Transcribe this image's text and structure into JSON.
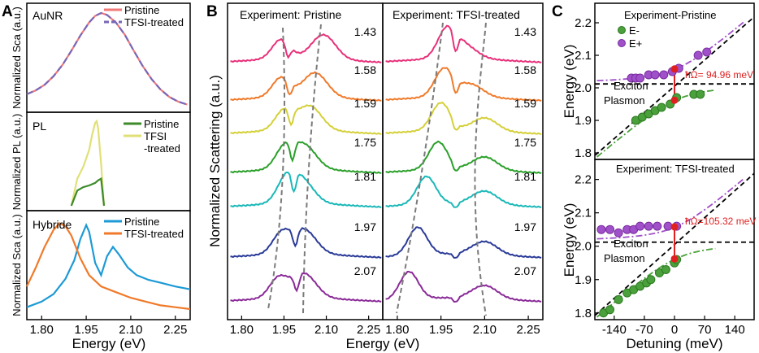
{
  "panel_letters": {
    "a": "A",
    "b": "B",
    "c": "C"
  },
  "colors": {
    "pristine_aunr": "#f07878",
    "tfsi_aunr": "#7868b8",
    "pl_pristine": "#3d8a2a",
    "pl_tfsi": "#e0e078",
    "hyb_pristine": "#1d9ad6",
    "hyb_tfsi": "#f07a2a",
    "e_minus": "#4aa03a",
    "e_plus": "#a050c8",
    "rabi": "#e02020",
    "guide": "#7a7a7a"
  },
  "chart_data": [
    {
      "id": "A-top",
      "type": "line",
      "title": "AuNR",
      "ylabel": "Normalized Sca (a.u.)",
      "legend": [
        "Pristine",
        "TFSI-treated"
      ],
      "legend_position": "top-right",
      "xlim": [
        1.75,
        2.3
      ],
      "series": [
        {
          "name": "Pristine",
          "x": [
            1.75,
            1.78,
            1.81,
            1.84,
            1.87,
            1.9,
            1.93,
            1.96,
            1.98,
            2.0,
            2.02,
            2.05,
            2.08,
            2.11,
            2.14,
            2.17,
            2.2,
            2.23,
            2.26,
            2.29
          ],
          "y": [
            0.14,
            0.18,
            0.24,
            0.33,
            0.45,
            0.6,
            0.76,
            0.9,
            0.97,
            1.0,
            0.98,
            0.9,
            0.77,
            0.6,
            0.44,
            0.3,
            0.19,
            0.11,
            0.06,
            0.03
          ]
        },
        {
          "name": "TFSI-treated",
          "x": [
            1.75,
            1.78,
            1.81,
            1.84,
            1.87,
            1.9,
            1.93,
            1.96,
            1.98,
            2.0,
            2.02,
            2.05,
            2.08,
            2.11,
            2.14,
            2.17,
            2.2,
            2.23,
            2.26,
            2.29
          ],
          "y": [
            0.14,
            0.18,
            0.24,
            0.33,
            0.45,
            0.6,
            0.76,
            0.9,
            0.97,
            1.0,
            0.98,
            0.9,
            0.77,
            0.6,
            0.44,
            0.3,
            0.19,
            0.11,
            0.06,
            0.03
          ]
        }
      ]
    },
    {
      "id": "A-middle",
      "type": "line",
      "title": "PL",
      "ylabel": "Normalized PL (a.u.)",
      "legend": [
        "Pristine",
        "TFSI",
        "-treated"
      ],
      "legend_position": "top-right",
      "xlim": [
        1.75,
        2.3
      ],
      "series": [
        {
          "name": "Pristine",
          "x": [
            1.9,
            1.92,
            1.94,
            1.96,
            1.98,
            1.99,
            2.0,
            2.01
          ],
          "y": [
            0.0,
            0.18,
            0.22,
            0.24,
            0.27,
            0.3,
            0.32,
            0.0
          ]
        },
        {
          "name": "TFSI-treated",
          "x": [
            1.9,
            1.92,
            1.94,
            1.96,
            1.97,
            1.98,
            1.985,
            1.99,
            2.0,
            2.01
          ],
          "y": [
            0.0,
            0.32,
            0.46,
            0.66,
            0.84,
            0.98,
            1.0,
            0.92,
            0.5,
            0.0
          ]
        }
      ]
    },
    {
      "id": "A-bottom",
      "type": "line",
      "title": "Hybride",
      "ylabel": "Normalized Sca (a.u.)",
      "xlabel": "Energy (eV)",
      "legend": [
        "Pristine",
        "TFSI-treated"
      ],
      "legend_position": "top-right",
      "xlim": [
        1.75,
        2.3
      ],
      "xticks": [
        "1.80",
        "1.95",
        "2.10",
        "2.25"
      ],
      "series": [
        {
          "name": "Pristine",
          "x": [
            1.75,
            1.8,
            1.84,
            1.88,
            1.91,
            1.93,
            1.95,
            1.96,
            1.98,
            2.0,
            2.02,
            2.04,
            2.06,
            2.09,
            2.12,
            2.16,
            2.2,
            2.25,
            2.3
          ],
          "y": [
            0.08,
            0.14,
            0.22,
            0.38,
            0.58,
            0.8,
            0.95,
            0.88,
            0.55,
            0.42,
            0.62,
            0.72,
            0.64,
            0.5,
            0.42,
            0.37,
            0.34,
            0.3,
            0.27
          ]
        },
        {
          "name": "TFSI-treated",
          "x": [
            1.75,
            1.78,
            1.81,
            1.84,
            1.86,
            1.88,
            1.9,
            1.93,
            1.96,
            2.0,
            2.05,
            2.1,
            2.15,
            2.2,
            2.25,
            2.3
          ],
          "y": [
            0.3,
            0.5,
            0.72,
            0.9,
            0.97,
            0.94,
            0.84,
            0.6,
            0.42,
            0.3,
            0.24,
            0.18,
            0.14,
            0.1,
            0.08,
            0.06
          ]
        }
      ]
    },
    {
      "id": "B-left",
      "type": "line",
      "title": "Experiment: Pristine",
      "ylabel": "Normalized Scattering (a.u.)",
      "xlim": [
        1.75,
        2.3
      ],
      "xticks": [
        "1.80",
        "1.95",
        "2.10",
        "2.25"
      ],
      "series": [
        {
          "name": "1.43",
          "color": "#e8307a",
          "dip": 1.965,
          "peak1": 1.94,
          "peak2": 2.09
        },
        {
          "name": "1.58",
          "color": "#f07a2a",
          "dip": 1.97,
          "peak1": 1.94,
          "peak2": 2.06
        },
        {
          "name": "1.59",
          "color": "#d4d038",
          "dip": 1.975,
          "peak1": 1.95,
          "peak2": 2.04
        },
        {
          "name": "1.75",
          "color": "#2aa02a",
          "dip": 1.98,
          "peak1": 1.95,
          "peak2": 2.02
        },
        {
          "name": "1.81",
          "color": "#1ab8b8",
          "dip": 1.985,
          "peak1": 1.955,
          "peak2": 2.01
        },
        {
          "name": "1.97",
          "color": "#2a3a98",
          "dip": 1.99,
          "peak1": 1.94,
          "peak2": 2.02
        },
        {
          "name": "2.07",
          "color": "#8a2a98",
          "dip": 1.995,
          "peak1": 1.93,
          "peak2": 2.02
        }
      ]
    },
    {
      "id": "B-right",
      "type": "line",
      "title": "Experiment: TFSI-treated",
      "xlabel": "Energy (eV)",
      "xlim": [
        1.75,
        2.3
      ],
      "xticks": [
        "1.80",
        "1.95",
        "2.10",
        "2.25"
      ],
      "series": [
        {
          "name": "1.43",
          "color": "#e8307a",
          "dip": 2.0,
          "peak1": 1.97,
          "peak2": 2.03
        },
        {
          "name": "1.58",
          "color": "#f07a2a",
          "dip": 2.0,
          "peak1": 1.96,
          "peak2": 2.05
        },
        {
          "name": "1.59",
          "color": "#d4d038",
          "dip": 2.0,
          "peak1": 1.95,
          "peak2": 2.1
        },
        {
          "name": "1.75",
          "color": "#2aa02a",
          "dip": 2.0,
          "peak1": 1.94,
          "peak2": 2.1
        },
        {
          "name": "1.81",
          "color": "#1ab8b8",
          "dip": 2.0,
          "peak1": 1.9,
          "peak2": 2.1
        },
        {
          "name": "1.97",
          "color": "#2a3a98",
          "dip": 2.0,
          "peak1": 1.87,
          "peak2": 2.1
        },
        {
          "name": "2.07",
          "color": "#8a2a98",
          "dip": 2.0,
          "peak1": 1.84,
          "peak2": 2.1
        }
      ]
    },
    {
      "id": "C-top",
      "type": "scatter",
      "title": "Experiment-Pristine",
      "ylabel": "Energy (eV)",
      "ylim": [
        1.78,
        2.26
      ],
      "yticks": [
        "1.8",
        "1.9",
        "2.0",
        "2.1",
        "2.2"
      ],
      "xlim": [
        -185,
        185
      ],
      "legend": [
        "E-",
        "E+"
      ],
      "legend_position": "top-left",
      "annotations": [
        "ħΩ= 94.96 meV",
        "Exciton",
        "Plasmon"
      ],
      "series": [
        {
          "name": "E-",
          "x": [
            -90,
            -75,
            -60,
            -45,
            -30,
            -10,
            5,
            45,
            60
          ],
          "y": [
            1.9,
            1.91,
            1.92,
            1.93,
            1.94,
            1.95,
            1.97,
            1.98,
            1.98
          ]
        },
        {
          "name": "E+",
          "x": [
            -100,
            -90,
            -80,
            -60,
            -45,
            -25,
            -5,
            10,
            55,
            75
          ],
          "y": [
            2.03,
            2.03,
            2.03,
            2.04,
            2.04,
            2.04,
            2.05,
            2.06,
            2.1,
            2.11
          ]
        }
      ]
    },
    {
      "id": "C-bottom",
      "type": "scatter",
      "title": "Experiment: TFSI-treated",
      "ylabel": "Energy (eV)",
      "xlabel": "Detuning (meV)",
      "ylim": [
        1.78,
        2.26
      ],
      "yticks": [
        "1.8",
        "1.9",
        "2.0",
        "2.1",
        "2.2"
      ],
      "xlim": [
        -185,
        185
      ],
      "xticks": [
        "-140",
        "-70",
        "0",
        "70",
        "140"
      ],
      "annotations": [
        "ħΩ=105.32 meV",
        "Exciton",
        "Plasmon"
      ],
      "series": [
        {
          "name": "E-",
          "x": [
            -165,
            -150,
            -130,
            -110,
            -95,
            -80,
            -65,
            -55,
            -35,
            -20,
            0,
            5
          ],
          "y": [
            1.8,
            1.81,
            1.84,
            1.86,
            1.87,
            1.88,
            1.89,
            1.9,
            1.92,
            1.93,
            1.95,
            1.96
          ]
        },
        {
          "name": "E+",
          "x": [
            -170,
            -150,
            -130,
            -110,
            -95,
            -80,
            -60,
            -40,
            -15,
            5
          ],
          "y": [
            2.05,
            2.05,
            2.04,
            2.05,
            2.05,
            2.06,
            2.06,
            2.06,
            2.06,
            2.06
          ]
        }
      ]
    }
  ],
  "labels": {
    "aunr": "AuNR",
    "pl": "PL",
    "hybride": "Hybride",
    "pristine": "Pristine",
    "tfsi_treated": "TFSI-treated",
    "tfsi": "TFSI",
    "treated": "-treated",
    "a_ylabel_top": "Normalized Sca (a.u.)",
    "a_ylabel_mid": "Normalized PL (a.u.)",
    "a_ylabel_bot": "Normalized Sca (a.u.)",
    "energy_ev": "Energy (eV)",
    "b_left_title": "Experiment: Pristine",
    "b_right_title": "Experiment: TFSI-treated",
    "b_ylabel": "Normalized Scattering (a.u.)",
    "c_top_title": "Experiment-Pristine",
    "c_bot_title": "Experiment: TFSI-treated",
    "c_ylabel": "Energy (eV)",
    "c_xlabel": "Detuning (meV)",
    "e_minus": "E-",
    "e_plus": "E+",
    "exciton": "Exciton",
    "plasmon": "Plasmon",
    "rabi_top": "ħΩ= 94.96 meV",
    "rabi_bot": "ħΩ=105.32 meV"
  },
  "b_offsets": [
    "1.43",
    "1.58",
    "1.59",
    "1.75",
    "1.81",
    "1.97",
    "2.07"
  ],
  "energy_ticks": [
    "1.80",
    "1.95",
    "2.10",
    "2.25"
  ],
  "c_yticks": [
    "1.8",
    "1.9",
    "2.0",
    "2.1",
    "2.2"
  ],
  "c_xticks": [
    "-140",
    "-70",
    "0",
    "70",
    "140"
  ]
}
